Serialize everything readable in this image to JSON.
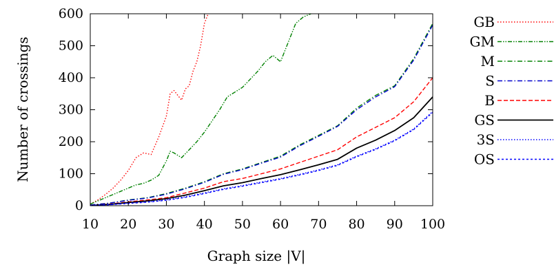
{
  "chart_data": {
    "type": "line",
    "xlabel": "Graph size |V|",
    "ylabel": "Number of crossings",
    "xlim": [
      10,
      100
    ],
    "ylim": [
      0,
      600
    ],
    "x_ticks": [
      10,
      20,
      30,
      40,
      50,
      60,
      70,
      80,
      90,
      100
    ],
    "y_ticks": [
      0,
      100,
      200,
      300,
      400,
      500,
      600
    ],
    "grid": false,
    "legend_position": "right",
    "series": [
      {
        "name": "GB",
        "color": "#ff0000",
        "dash": "dotted",
        "x": [
          10,
          12,
          14,
          16,
          18,
          20,
          22,
          24,
          26,
          28,
          30,
          31,
          32,
          34,
          35,
          36,
          37,
          38,
          39,
          40,
          41
        ],
        "y": [
          5,
          18,
          35,
          55,
          80,
          110,
          150,
          165,
          160,
          215,
          280,
          350,
          360,
          330,
          365,
          375,
          420,
          450,
          500,
          570,
          600
        ]
      },
      {
        "name": "GM",
        "color": "#008000",
        "dash": "dash-dot-dot",
        "x": [
          10,
          12,
          14,
          16,
          18,
          20,
          22,
          24,
          26,
          28,
          30,
          31,
          32,
          34,
          36,
          38,
          40,
          42,
          44,
          46,
          48,
          50,
          52,
          54,
          56,
          58,
          60,
          62,
          64,
          66,
          68
        ],
        "y": [
          5,
          15,
          25,
          35,
          45,
          55,
          65,
          70,
          80,
          95,
          140,
          170,
          165,
          150,
          175,
          200,
          230,
          265,
          300,
          340,
          355,
          370,
          395,
          420,
          450,
          470,
          450,
          510,
          570,
          590,
          600
        ]
      },
      {
        "name": "M",
        "color": "#008000",
        "dash": "dash-dot",
        "x": [
          10,
          15,
          20,
          25,
          30,
          35,
          40,
          45,
          50,
          55,
          60,
          65,
          70,
          75,
          80,
          85,
          90,
          95,
          100
        ],
        "y": [
          2,
          8,
          18,
          25,
          38,
          55,
          75,
          100,
          115,
          135,
          155,
          190,
          220,
          250,
          305,
          345,
          375,
          460,
          570
        ]
      },
      {
        "name": "S",
        "color": "#0000cc",
        "dash": "dash-dot",
        "x": [
          10,
          15,
          20,
          25,
          30,
          35,
          40,
          45,
          50,
          55,
          60,
          65,
          70,
          75,
          80,
          85,
          90,
          95,
          100
        ],
        "y": [
          2,
          8,
          17,
          24,
          36,
          53,
          73,
          98,
          113,
          133,
          152,
          187,
          217,
          248,
          300,
          340,
          372,
          455,
          565
        ]
      },
      {
        "name": "B",
        "color": "#ff0000",
        "dash": "dashed",
        "x": [
          10,
          15,
          20,
          25,
          30,
          35,
          40,
          45,
          50,
          55,
          60,
          65,
          70,
          75,
          80,
          85,
          90,
          95,
          100
        ],
        "y": [
          1,
          5,
          12,
          18,
          25,
          40,
          55,
          75,
          85,
          100,
          115,
          135,
          155,
          175,
          215,
          245,
          275,
          325,
          400
        ]
      },
      {
        "name": "GS",
        "color": "#000000",
        "dash": "solid",
        "x": [
          10,
          15,
          20,
          25,
          30,
          35,
          40,
          45,
          50,
          55,
          60,
          65,
          70,
          75,
          80,
          85,
          90,
          95,
          100
        ],
        "y": [
          1,
          4,
          10,
          15,
          22,
          33,
          47,
          62,
          72,
          85,
          97,
          112,
          128,
          145,
          180,
          205,
          235,
          275,
          340
        ]
      },
      {
        "name": "3S",
        "color": "#0000ff",
        "dash": "dotted",
        "x": [
          10,
          15,
          20,
          25,
          30,
          35,
          40,
          45,
          50,
          55,
          60,
          65,
          70,
          75,
          80,
          85,
          90,
          95,
          100
        ],
        "y": [
          1,
          3,
          8,
          12,
          18,
          28,
          40,
          53,
          63,
          74,
          85,
          98,
          112,
          128,
          155,
          178,
          205,
          240,
          295
        ]
      },
      {
        "name": "OS",
        "color": "#0000ff",
        "dash": "short-dash",
        "x": [
          10,
          15,
          20,
          25,
          30,
          35,
          40,
          45,
          50,
          55,
          60,
          65,
          70,
          75,
          80,
          85,
          90,
          95,
          100
        ],
        "y": [
          1,
          3,
          7,
          11,
          17,
          26,
          38,
          51,
          61,
          72,
          83,
          96,
          110,
          126,
          153,
          176,
          203,
          238,
          292
        ]
      }
    ]
  }
}
